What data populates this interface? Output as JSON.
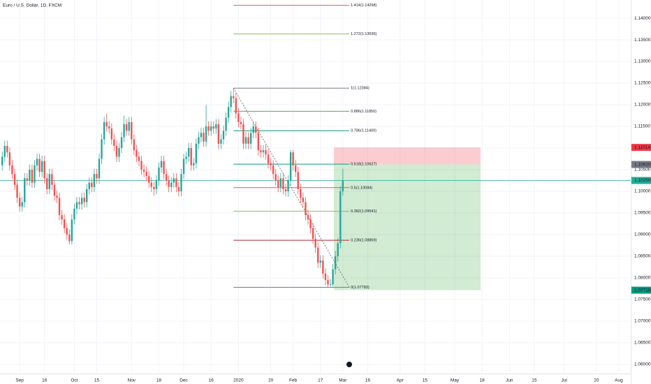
{
  "chart_data": {
    "type": "candlestick",
    "title": "Euro / U.S. Dollar, 1D, FXCM",
    "xlim": [
      -7.9,
      245.8
    ],
    "ylim": [
      1.0579,
      1.1442
    ],
    "grid": true,
    "xticks": [
      {
        "value": 0,
        "label": "Sep"
      },
      {
        "value": 10,
        "label": "16"
      },
      {
        "value": 22,
        "label": "Oct"
      },
      {
        "value": 31,
        "label": "15"
      },
      {
        "value": 45,
        "label": "Nov"
      },
      {
        "value": 56,
        "label": "18"
      },
      {
        "value": 66,
        "label": "Dec"
      },
      {
        "value": 77,
        "label": "16"
      },
      {
        "value": 88,
        "label": "2020"
      },
      {
        "value": 101,
        "label": "20"
      },
      {
        "value": 110,
        "label": "Feb"
      },
      {
        "value": 121,
        "label": "17"
      },
      {
        "value": 130,
        "label": "Mar"
      },
      {
        "value": 140,
        "label": "16"
      },
      {
        "value": 153,
        "label": "Apr"
      },
      {
        "value": 163,
        "label": "15"
      },
      {
        "value": 175,
        "label": "May"
      },
      {
        "value": 186,
        "label": "18"
      },
      {
        "value": 197,
        "label": "Jun"
      },
      {
        "value": 207,
        "label": "15"
      },
      {
        "value": 219,
        "label": "Jul"
      },
      {
        "value": 232,
        "label": "20"
      },
      {
        "value": 241,
        "label": "Aug"
      }
    ],
    "yticks": [
      {
        "value": 1.06,
        "label": "1.06000"
      },
      {
        "value": 1.065,
        "label": "1.06500"
      },
      {
        "value": 1.07,
        "label": "1.07000"
      },
      {
        "value": 1.075,
        "label": "1.07500"
      },
      {
        "value": 1.08,
        "label": "1.08000"
      },
      {
        "value": 1.085,
        "label": "1.08500"
      },
      {
        "value": 1.09,
        "label": "1.09000"
      },
      {
        "value": 1.095,
        "label": "1.09500"
      },
      {
        "value": 1.1,
        "label": "1.10000"
      },
      {
        "value": 1.105,
        "label": "1.10500"
      },
      {
        "value": 1.11,
        "label": "1.11000"
      },
      {
        "value": 1.115,
        "label": "1.11500"
      },
      {
        "value": 1.12,
        "label": "1.12000"
      },
      {
        "value": 1.125,
        "label": "1.12500"
      },
      {
        "value": 1.13,
        "label": "1.13000"
      },
      {
        "value": 1.135,
        "label": "1.13500"
      },
      {
        "value": 1.14,
        "label": "1.14000"
      }
    ],
    "up_color": "#26a69a",
    "down_color": "#ef5350",
    "x": [
      -7,
      -6,
      -5,
      -4,
      -3,
      -2,
      -1,
      0,
      1,
      2,
      3,
      4,
      5,
      6,
      7,
      8,
      9,
      10,
      11,
      12,
      13,
      14,
      15,
      16,
      17,
      18,
      19,
      20,
      21,
      22,
      23,
      24,
      25,
      26,
      27,
      28,
      29,
      30,
      31,
      32,
      33,
      34,
      35,
      36,
      37,
      38,
      39,
      40,
      41,
      42,
      43,
      44,
      45,
      46,
      47,
      48,
      49,
      50,
      51,
      52,
      53,
      54,
      55,
      56,
      57,
      58,
      59,
      60,
      61,
      62,
      63,
      64,
      65,
      66,
      67,
      68,
      69,
      70,
      71,
      72,
      73,
      74,
      75,
      76,
      77,
      78,
      79,
      80,
      81,
      82,
      83,
      84,
      85,
      86,
      87,
      88,
      89,
      90,
      91,
      92,
      93,
      94,
      95,
      96,
      97,
      98,
      99,
      100,
      101,
      102,
      103,
      104,
      105,
      106,
      107,
      108,
      109,
      110,
      111,
      112,
      113,
      114,
      115,
      116,
      117,
      118,
      119,
      120,
      121,
      122,
      123,
      124,
      125,
      126,
      127,
      128,
      129,
      130
    ],
    "open": [
      1.106,
      1.108,
      1.1105,
      1.109,
      1.106,
      1.104,
      1.1015,
      1.0985,
      1.0965,
      1.0975,
      1.103,
      1.1025,
      1.105,
      1.102,
      1.106,
      1.1075,
      1.1045,
      1.107,
      1.103,
      1.1005,
      1.104,
      1.1015,
      1.099,
      1.0985,
      1.0945,
      1.0935,
      1.0915,
      1.09,
      1.0885,
      1.0935,
      1.096,
      1.0975,
      1.097,
      1.0985,
      1.0975,
      1.1005,
      1.102,
      1.101,
      1.104,
      1.103,
      1.1075,
      1.112,
      1.116,
      1.115,
      1.1145,
      1.112,
      1.1105,
      1.108,
      1.11,
      1.1125,
      1.1155,
      1.114,
      1.116,
      1.112,
      1.1095,
      1.108,
      1.107,
      1.105,
      1.1045,
      1.1035,
      1.102,
      1.101,
      1.1005,
      1.1025,
      1.1055,
      1.107,
      1.104,
      1.1025,
      1.101,
      1.102,
      1.103,
      1.101,
      1.1,
      1.104,
      1.1075,
      1.108,
      1.11,
      1.106,
      1.1065,
      1.111,
      1.1125,
      1.1135,
      1.1115,
      1.115,
      1.114,
      1.115,
      1.1145,
      1.1155,
      1.111,
      1.112,
      1.114,
      1.117,
      1.1195,
      1.122,
      1.1215,
      1.118,
      1.116,
      1.1155,
      1.111,
      1.1125,
      1.111,
      1.1135,
      1.115,
      1.1135,
      1.1095,
      1.109,
      1.1095,
      1.1085,
      1.1065,
      1.106,
      1.104,
      1.1025,
      1.101,
      1.103,
      1.1005,
      1.1,
      1.1025,
      1.109,
      1.106,
      1.1045,
      1.1005,
      1.0985,
      1.0975,
      1.0945,
      1.0935,
      1.0915,
      1.089,
      1.087,
      1.0835,
      1.084,
      1.081,
      1.0795,
      1.0785,
      1.0785,
      1.082,
      1.085,
      1.088,
      1.1
    ],
    "high": [
      1.1092,
      1.1117,
      1.1117,
      1.1102,
      1.1072,
      1.1052,
      1.1027,
      1.0997,
      1.0987,
      1.1042,
      1.1042,
      1.1062,
      1.1062,
      1.1072,
      1.1087,
      1.1087,
      1.1082,
      1.1082,
      1.1042,
      1.1052,
      1.1052,
      1.1027,
      1.1002,
      1.0997,
      1.0957,
      1.0947,
      1.0927,
      1.0912,
      1.0947,
      1.0972,
      1.0987,
      1.0987,
      1.0997,
      1.0997,
      1.1017,
      1.1032,
      1.1032,
      1.1052,
      1.1052,
      1.1087,
      1.1132,
      1.1172,
      1.1179,
      1.1162,
      1.1157,
      1.1132,
      1.1117,
      1.1112,
      1.1137,
      1.1175,
      1.1167,
      1.1172,
      1.1172,
      1.1132,
      1.1107,
      1.1092,
      1.1082,
      1.1062,
      1.1057,
      1.1047,
      1.1032,
      1.1022,
      1.1037,
      1.1067,
      1.1082,
      1.1082,
      1.1052,
      1.1037,
      1.1032,
      1.1042,
      1.1042,
      1.1022,
      1.1052,
      1.1087,
      1.1092,
      1.1112,
      1.1112,
      1.1077,
      1.1122,
      1.1137,
      1.1147,
      1.1147,
      1.12,
      1.1162,
      1.1162,
      1.1162,
      1.1167,
      1.1167,
      1.1132,
      1.1152,
      1.1182,
      1.1207,
      1.1232,
      1.1238,
      1.1227,
      1.1192,
      1.1172,
      1.1167,
      1.1137,
      1.1137,
      1.1147,
      1.1162,
      1.1162,
      1.1147,
      1.1107,
      1.1107,
      1.1107,
      1.1097,
      1.1077,
      1.1072,
      1.1052,
      1.1037,
      1.1042,
      1.1042,
      1.1017,
      1.1037,
      1.1096,
      1.1095,
      1.1072,
      1.1057,
      1.1017,
      1.0997,
      1.0987,
      1.0957,
      1.0947,
      1.0927,
      1.0902,
      1.0882,
      1.0852,
      1.0852,
      1.0822,
      1.0807,
      1.0797,
      1.0832,
      1.0862,
      1.0892,
      1.1012,
      1.1052
    ],
    "low": [
      1.1048,
      1.1068,
      1.1078,
      1.1048,
      1.1028,
      1.1003,
      1.0973,
      1.0953,
      1.0953,
      1.0963,
      1.1013,
      1.1013,
      1.1008,
      1.1008,
      1.1048,
      1.1033,
      1.1033,
      1.1018,
      1.0993,
      1.0993,
      1.1003,
      1.0978,
      1.0973,
      1.0933,
      1.0923,
      1.0903,
      1.0888,
      1.0877,
      1.0877,
      1.0923,
      1.0948,
      1.0958,
      1.0958,
      1.0963,
      1.0963,
      1.0993,
      1.0998,
      1.0998,
      1.1018,
      1.1018,
      1.1063,
      1.1108,
      1.1138,
      1.1133,
      1.1108,
      1.1093,
      1.1068,
      1.1068,
      1.1088,
      1.1113,
      1.1128,
      1.1128,
      1.1108,
      1.1083,
      1.1068,
      1.1058,
      1.1038,
      1.1033,
      1.1023,
      1.1008,
      1.0998,
      1.099,
      1.0993,
      1.1013,
      1.1043,
      1.1028,
      1.1013,
      1.0998,
      1.0998,
      1.1008,
      1.0998,
      1.0988,
      1.0988,
      1.1028,
      1.1063,
      1.1068,
      1.1048,
      1.1048,
      1.1053,
      1.1098,
      1.1113,
      1.1103,
      1.1103,
      1.1128,
      1.1128,
      1.1133,
      1.1133,
      1.1098,
      1.1098,
      1.1108,
      1.1128,
      1.1158,
      1.1183,
      1.1203,
      1.1168,
      1.1148,
      1.1143,
      1.1098,
      1.1098,
      1.1098,
      1.1098,
      1.1123,
      1.1123,
      1.1083,
      1.1078,
      1.1078,
      1.1073,
      1.1053,
      1.1048,
      1.1028,
      1.1013,
      1.0998,
      1.0998,
      1.0993,
      1.0988,
      1.0988,
      1.1013,
      1.1048,
      1.1033,
      1.0993,
      1.0973,
      1.0963,
      1.0933,
      1.0923,
      1.0903,
      1.0878,
      1.0858,
      1.0823,
      1.0823,
      1.0798,
      1.0783,
      1.0778,
      1.078,
      1.078,
      1.0808,
      1.0838,
      1.0868,
      1.099
    ],
    "close": [
      1.108,
      1.1105,
      1.109,
      1.106,
      1.104,
      1.1015,
      1.0985,
      1.0965,
      1.0975,
      1.103,
      1.1025,
      1.105,
      1.102,
      1.106,
      1.1075,
      1.1045,
      1.107,
      1.103,
      1.1005,
      1.104,
      1.1015,
      1.099,
      1.0985,
      1.0945,
      1.0935,
      1.0915,
      1.09,
      1.0885,
      1.0935,
      1.096,
      1.0975,
      1.097,
      1.0985,
      1.0975,
      1.1005,
      1.102,
      1.101,
      1.104,
      1.103,
      1.1075,
      1.112,
      1.116,
      1.115,
      1.1145,
      1.112,
      1.1105,
      1.108,
      1.11,
      1.1125,
      1.1155,
      1.114,
      1.116,
      1.112,
      1.1095,
      1.108,
      1.107,
      1.105,
      1.1045,
      1.1035,
      1.102,
      1.101,
      1.1005,
      1.1025,
      1.1055,
      1.107,
      1.104,
      1.1025,
      1.101,
      1.102,
      1.103,
      1.101,
      1.1,
      1.104,
      1.1075,
      1.108,
      1.11,
      1.106,
      1.1065,
      1.111,
      1.1125,
      1.1135,
      1.1115,
      1.115,
      1.114,
      1.115,
      1.1145,
      1.1155,
      1.111,
      1.112,
      1.114,
      1.117,
      1.1195,
      1.122,
      1.1215,
      1.118,
      1.116,
      1.1155,
      1.111,
      1.1125,
      1.111,
      1.1135,
      1.115,
      1.1135,
      1.1095,
      1.109,
      1.1095,
      1.1085,
      1.1065,
      1.106,
      1.104,
      1.1025,
      1.101,
      1.103,
      1.1005,
      1.1,
      1.1025,
      1.109,
      1.106,
      1.1045,
      1.1005,
      1.0985,
      1.0975,
      1.0945,
      1.0935,
      1.0915,
      1.089,
      1.087,
      1.0835,
      1.084,
      1.081,
      1.0795,
      1.0785,
      1.0785,
      1.082,
      1.085,
      1.088,
      1.1,
      1.1025
    ],
    "fib_x": [
      86,
      132.6
    ],
    "fib_levels": [
      {
        "value": 1.14298,
        "label": "1.414(1.14298)",
        "color": "#ef5350"
      },
      {
        "value": 1.13636,
        "label": "1.272(1.13636)",
        "color": "#8bc34a"
      },
      {
        "value": 1.12384,
        "label": "1(1.12384)",
        "color": "#787b86"
      },
      {
        "value": 1.1185,
        "label": "0.886(1.11850)",
        "color": "#4caf50"
      },
      {
        "value": 1.114,
        "label": "0.786(1.11400)",
        "color": "#089981"
      },
      {
        "value": 1.10627,
        "label": "0.618(1.10627)",
        "color": "#089981"
      },
      {
        "value": 1.10084,
        "label": "0.5(1.10084)",
        "color": "#ef5350"
      },
      {
        "value": 1.09541,
        "label": "0.382(1.09541)",
        "color": "#8bc34a"
      },
      {
        "value": 1.08869,
        "label": "0.236(1.08869)",
        "color": "#b22833"
      },
      {
        "value": 1.07783,
        "label": "0(1.07783)",
        "color": "#787b86"
      }
    ],
    "position": {
      "x": [
        126.4,
        185.4
      ],
      "stop": {
        "value": 1.11014,
        "label": "1.11014",
        "color": "#f23645"
      },
      "entry": {
        "value": 1.1062,
        "label": "1.10620",
        "color": "#787b86"
      },
      "target": {
        "value": 1.07716,
        "label": "1.07716",
        "color": "#089981"
      }
    },
    "last_price": {
      "value": 1.1025,
      "label": "1.10250",
      "color": "#22ab94"
    }
  }
}
